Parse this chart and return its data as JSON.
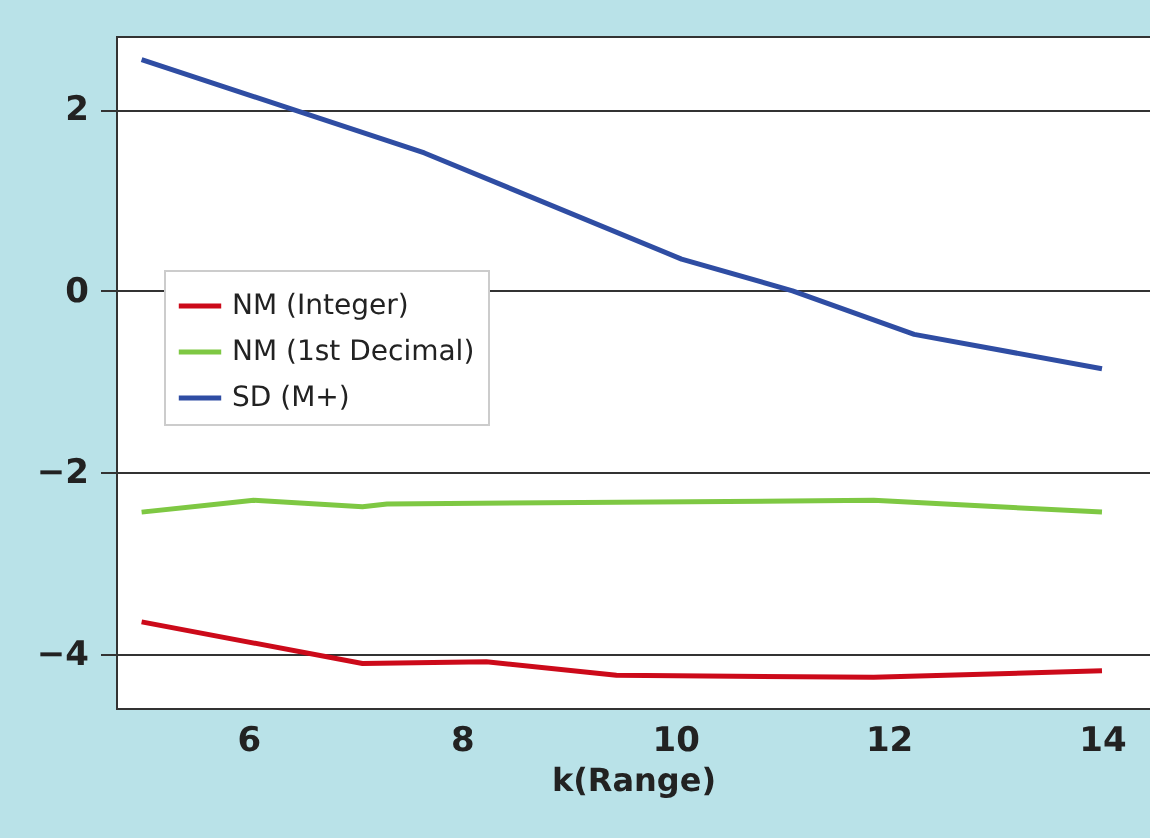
{
  "chart_data": {
    "type": "line",
    "xlabel": "k(Range)",
    "series": [
      {
        "name": "NM (Integer)",
        "color": "#cc0a1a",
        "x": [
          5,
          7.07,
          8.23,
          9.45,
          11.86,
          14
        ],
        "values": [
          -3.65,
          -4.11,
          -4.09,
          -4.24,
          -4.26,
          -4.19
        ]
      },
      {
        "name": "NM (1st Decimal)",
        "color": "#7ec843",
        "x": [
          5,
          6.05,
          7.07,
          7.3,
          11.86,
          14
        ],
        "values": [
          -2.44,
          -2.31,
          -2.38,
          -2.35,
          -2.31,
          -2.44
        ]
      },
      {
        "name": "SD (M+)",
        "color": "#2f4da3",
        "x": [
          5,
          7.65,
          10.06,
          11.1,
          12.24,
          14
        ],
        "values": [
          2.55,
          1.52,
          0.35,
          0.0,
          -0.48,
          -0.86
        ]
      }
    ],
    "xlim": [
      4.76,
      14.45
    ],
    "xticks": [
      6,
      8,
      10,
      12,
      14
    ],
    "ylim": [
      -4.6,
      2.81
    ],
    "yticks": [
      {
        "value": -4,
        "label": "−4"
      },
      {
        "value": -2,
        "label": "−2"
      },
      0,
      2
    ],
    "grid": "y",
    "legend": "top left",
    "line_style": "solid",
    "marker": "none"
  }
}
